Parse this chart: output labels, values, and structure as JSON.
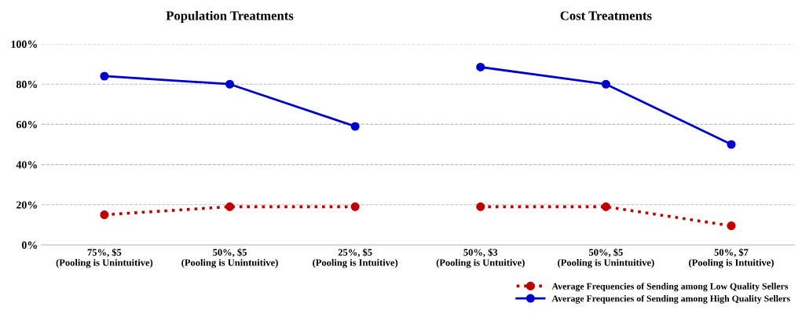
{
  "chart_data": [
    {
      "type": "line",
      "title": "Population Treatments",
      "categories": [
        "75%, $5\n(Pooling is Unintuitive)",
        "50%, $5\n(Pooling is Unintuitive)",
        "25%, $5\n(Pooling is Intuitive)"
      ],
      "series": [
        {
          "color": "#c00000",
          "line_style": "dotted",
          "values": [
            15,
            19,
            19
          ]
        },
        {
          "color": "#0000cc",
          "line_style": "solid",
          "values": [
            84,
            80,
            59
          ]
        }
      ],
      "ylim": [
        0,
        100
      ],
      "yticks": [
        {
          "value": 0,
          "label": "0%"
        },
        {
          "value": 20,
          "label": "20%"
        },
        {
          "value": 40,
          "label": "40%"
        },
        {
          "value": 60,
          "label": "60%"
        },
        {
          "value": 80,
          "label": "80%"
        },
        {
          "value": 100,
          "label": "100%"
        }
      ],
      "grid": "y",
      "marker": "circle"
    },
    {
      "type": "line",
      "title": "Cost Treatments",
      "categories": [
        "50%, $3\n(Pooling is Untuitive)",
        "50%, $5\n(Pooling is Unintuitive)",
        "50%, $7\n(Pooling is Intuitive)"
      ],
      "series": [
        {
          "name": "Average Frequencies of Sending among Low Quality Sellers",
          "color": "#c00000",
          "line_style": "dotted",
          "values": [
            19,
            19,
            9.5
          ]
        },
        {
          "name": "Average Frequencies of Sending among High Quality Sellers",
          "color": "#0000cc",
          "line_style": "solid",
          "values": [
            88.5,
            80,
            50
          ]
        }
      ],
      "ylim": [
        0,
        100
      ],
      "yticks": [
        {
          "value": 0,
          "label": null
        },
        {
          "value": 20,
          "label": null
        },
        {
          "value": 40,
          "label": null
        },
        {
          "value": 60,
          "label": null
        },
        {
          "value": 80,
          "label": null
        },
        {
          "value": 100,
          "label": null
        }
      ],
      "grid": "y",
      "marker": "circle",
      "tick_labels": "x",
      "legend": "bottom right"
    }
  ]
}
